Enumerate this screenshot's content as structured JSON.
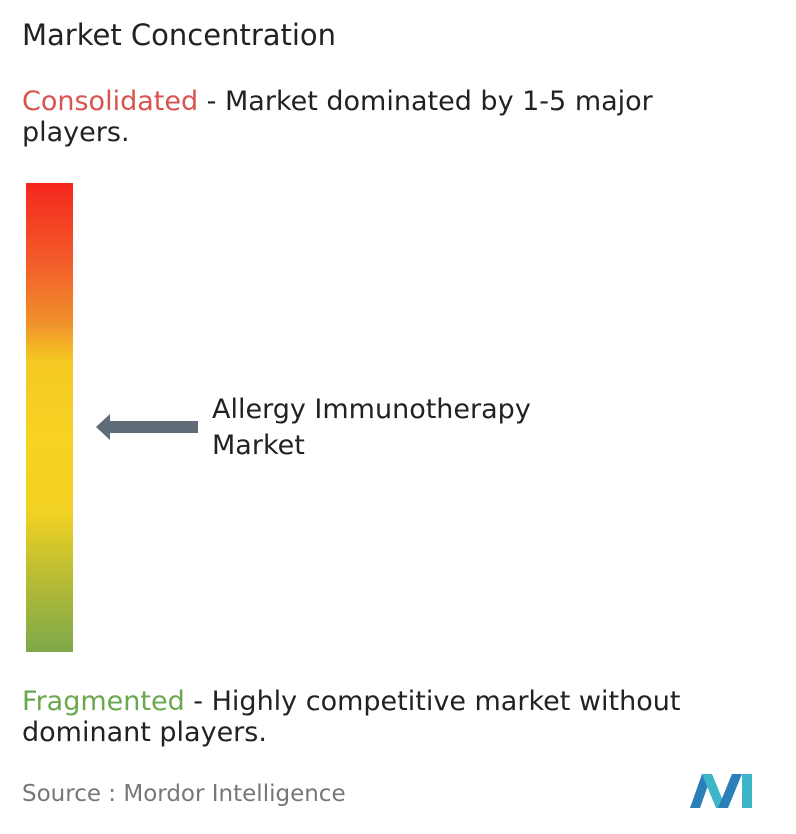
{
  "header": {
    "title": "Market Concentration"
  },
  "consolidated": {
    "label": "Consolidated",
    "description": " - Market dominated by 1-5 major players."
  },
  "market": {
    "label": "Allergy Immunotherapy Market"
  },
  "fragmented": {
    "label": "Fragmented",
    "description": " - Highly competitive market without dominant players."
  },
  "footer": {
    "source": "Source :  Mordor Intelligence"
  }
}
